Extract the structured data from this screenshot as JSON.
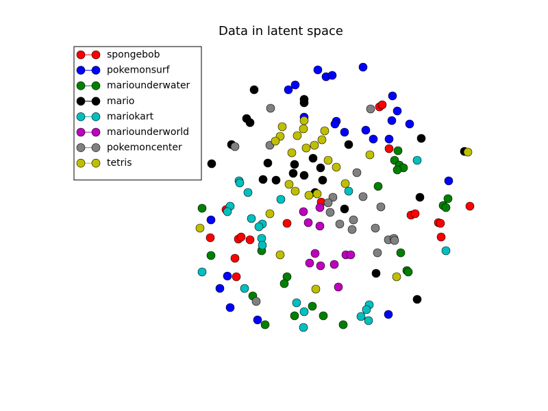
{
  "chart_data": {
    "type": "scatter",
    "title": "Data in latent space",
    "xlim": [
      0,
      620
    ],
    "ylim": [
      0,
      480
    ],
    "legend": "upper left",
    "series": [
      {
        "name": "spongebob",
        "color": "#ff0000",
        "x": [
          454,
          458,
          468,
          369,
          230,
          319,
          207,
          248,
          252,
          265,
          243,
          245,
          500,
          506,
          540,
          543,
          544,
          586
        ],
        "values": [
          384,
          387,
          323,
          245,
          234,
          214,
          193,
          191,
          194,
          190,
          163,
          136,
          226,
          228,
          215,
          214,
          194,
          239
        ]
      },
      {
        "name": "pokemonsurf",
        "color": "#0000ff",
        "x": [
          364,
          376,
          385,
          430,
          331,
          321,
          473,
          480,
          472,
          498,
          344,
          391,
          389,
          403,
          434,
          445,
          468,
          555,
          208,
          232,
          221,
          236,
          276,
          467
        ],
        "values": [
          438,
          428,
          430,
          442,
          416,
          409,
          400,
          378,
          364,
          359,
          369,
          363,
          359,
          347,
          350,
          337,
          337,
          276,
          219,
          137,
          119,
          91,
          73,
          81
        ]
      },
      {
        "name": "mariounderwater",
        "color": "#008000",
        "x": [
          481,
          476,
          483,
          489,
          480,
          452,
          554,
          547,
          551,
          195,
          282,
          485,
          208,
          494,
          496,
          319,
          315,
          269,
          356,
          330,
          372,
          287,
          401
        ],
        "values": [
          320,
          306,
          299,
          295,
          292,
          268,
          250,
          240,
          237,
          236,
          174,
          171,
          167,
          145,
          143,
          136,
          126,
          108,
          93,
          79,
          79,
          66,
          66
        ]
      },
      {
        "name": "mario",
        "color": "#000000",
        "x": [
          271,
          344,
          344,
          260,
          265,
          515,
          238,
          409,
          357,
          291,
          209,
          330,
          368,
          328,
          344,
          284,
          303,
          371,
          360,
          403,
          513,
          578,
          449,
          509
        ],
        "values": [
          409,
          395,
          390,
          367,
          361,
          338,
          329,
          329,
          309,
          302,
          301,
          300,
          295,
          287,
          284,
          278,
          277,
          277,
          259,
          235,
          252,
          319,
          141,
          103
        ]
      },
      {
        "name": "mariokart",
        "color": "#00bfbf",
        "x": [
          249,
          250,
          262,
          409,
          310,
          236,
          232,
          267,
          283,
          278,
          282,
          283,
          509,
          551,
          195,
          257,
          333,
          439,
          435,
          344,
          427,
          438,
          343
        ],
        "values": [
          276,
          273,
          259,
          261,
          249,
          239,
          231,
          221,
          213,
          209,
          192,
          182,
          306,
          174,
          143,
          119,
          98,
          95,
          88,
          85,
          78,
          72,
          62
        ]
      },
      {
        "name": "mariounderworld",
        "color": "#bf00bf",
        "x": [
          367,
          343,
          350,
          367,
          360,
          352,
          368,
          388,
          405,
          412,
          394
        ],
        "values": [
          237,
          231,
          215,
          210,
          170,
          156,
          152,
          154,
          168,
          168,
          121
        ]
      },
      {
        "name": "pokemoncenter",
        "color": "#808080",
        "x": [
          295,
          441,
          243,
          294,
          421,
          386,
          379,
          430,
          382,
          456,
          396,
          416,
          414,
          448,
          467,
          475,
          476,
          451,
          274
        ],
        "values": [
          382,
          381,
          326,
          328,
          288,
          252,
          244,
          253,
          230,
          238,
          213,
          219,
          205,
          207,
          190,
          192,
          189,
          171,
          100
        ]
      },
      {
        "name": "tetris",
        "color": "#bfbf00",
        "x": [
          312,
          344,
          343,
          374,
          334,
          309,
          302,
          370,
          359,
          347,
          326,
          440,
          379,
          391,
          404,
          322,
          331,
          351,
          363,
          294,
          192,
          309,
          361,
          479,
          583
        ],
        "values": [
          355,
          364,
          352,
          349,
          342,
          341,
          334,
          336,
          328,
          324,
          317,
          314,
          306,
          296,
          272,
          271,
          261,
          255,
          257,
          228,
          207,
          168,
          118,
          136,
          318
        ]
      }
    ]
  }
}
